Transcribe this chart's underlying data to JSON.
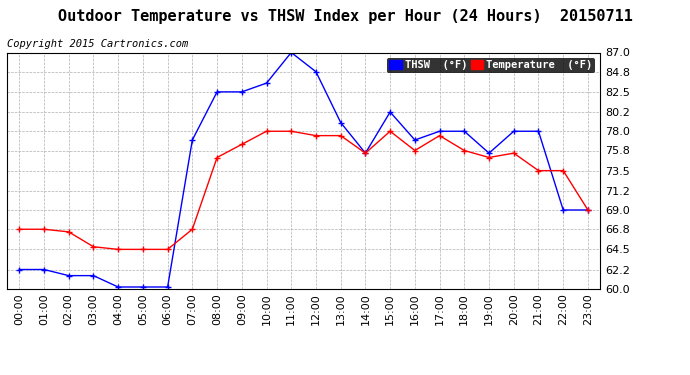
{
  "title": "Outdoor Temperature vs THSW Index per Hour (24 Hours)  20150711",
  "copyright": "Copyright 2015 Cartronics.com",
  "legend_thsw": "THSW  (°F)",
  "legend_temp": "Temperature  (°F)",
  "hours": [
    "00:00",
    "01:00",
    "02:00",
    "03:00",
    "04:00",
    "05:00",
    "06:00",
    "07:00",
    "08:00",
    "09:00",
    "10:00",
    "11:00",
    "12:00",
    "13:00",
    "14:00",
    "15:00",
    "16:00",
    "17:00",
    "18:00",
    "19:00",
    "20:00",
    "21:00",
    "22:00",
    "23:00"
  ],
  "thsw": [
    62.2,
    62.2,
    61.5,
    61.5,
    60.2,
    60.2,
    60.2,
    77.0,
    82.5,
    82.5,
    83.5,
    87.0,
    84.8,
    79.0,
    75.5,
    80.2,
    77.0,
    78.0,
    78.0,
    75.5,
    78.0,
    78.0,
    69.0,
    69.0
  ],
  "temperature": [
    66.8,
    66.8,
    66.5,
    64.8,
    64.5,
    64.5,
    64.5,
    66.8,
    75.0,
    76.5,
    78.0,
    78.0,
    77.5,
    77.5,
    75.5,
    78.0,
    75.8,
    77.5,
    75.8,
    75.0,
    75.5,
    73.5,
    73.5,
    69.0
  ],
  "ylim": [
    60.0,
    87.0
  ],
  "yticks": [
    60.0,
    62.2,
    64.5,
    66.8,
    69.0,
    71.2,
    73.5,
    75.8,
    78.0,
    80.2,
    82.5,
    84.8,
    87.0
  ],
  "thsw_color": "#0000ff",
  "temp_color": "#ff0000",
  "bg_color": "#ffffff",
  "grid_color": "#b0b0b0",
  "title_fontsize": 11,
  "copyright_fontsize": 7.5,
  "tick_fontsize": 8
}
